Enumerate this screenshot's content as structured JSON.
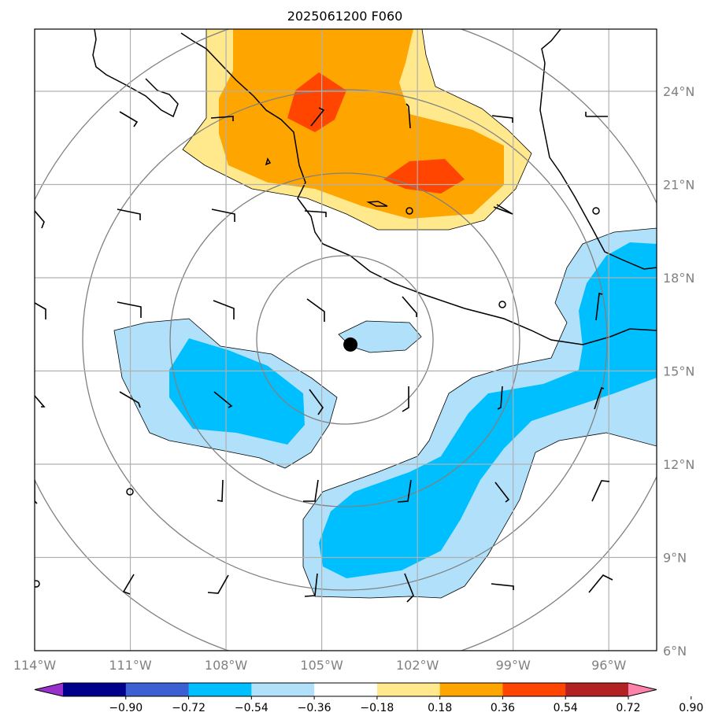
{
  "chart_data": {
    "type": "map-contour",
    "title": "2025061200 F060",
    "map_extent": {
      "lon_min": -114,
      "lon_max": -94.5,
      "lat_min": 6,
      "lat_max": 26
    },
    "lon_ticks": [
      -114,
      -111,
      -108,
      -105,
      -102,
      -99,
      -96
    ],
    "lon_tick_labels": [
      "114°W",
      "111°W",
      "108°W",
      "105°W",
      "102°W",
      "99°W",
      "96°W"
    ],
    "lat_ticks": [
      24,
      21,
      18,
      15,
      12,
      9,
      6
    ],
    "lat_tick_labels": [
      "24°N",
      "21°N",
      "18°N",
      "15°N",
      "12°N",
      "9°N",
      "6°N"
    ],
    "grid": true,
    "center_marker": {
      "lon": -104.1,
      "lat": 15.85
    },
    "range_rings_deg": [
      2.3,
      5.5,
      8.5,
      11.3
    ],
    "colorbar": {
      "levels": [
        -0.9,
        -0.72,
        -0.54,
        -0.36,
        -0.18,
        0.18,
        0.36,
        0.54,
        0.72,
        0.9
      ],
      "labels": [
        "−0.90",
        "−0.72",
        "−0.54",
        "−0.36",
        "−0.18",
        "0.18",
        "0.36",
        "0.54",
        "0.72",
        "0.90"
      ],
      "colors": [
        "#9932cc",
        "#00008b",
        "#3c5fd2",
        "#00bfff",
        "#b0e0fa",
        "#ffffff",
        "#ffe98c",
        "#ffa500",
        "#ff4500",
        "#b22222",
        "#ff82ab"
      ],
      "extend": "both"
    },
    "regions": [
      {
        "name": "positive-north",
        "min_level": 0.18,
        "max_level": 0.72,
        "center": {
          "lon": -102.5,
          "lat": 22.5
        }
      },
      {
        "name": "negative-west",
        "min_level": -0.54,
        "max_level": -0.18,
        "center": {
          "lon": -108.5,
          "lat": 14.5
        }
      },
      {
        "name": "negative-center",
        "min_level": -0.36,
        "max_level": -0.18,
        "center": {
          "lon": -102.6,
          "lat": 16.0
        }
      },
      {
        "name": "negative-band-southeast",
        "min_level": -0.54,
        "max_level": -0.18,
        "center": {
          "lon": -99,
          "lat": 12.5
        }
      }
    ]
  }
}
